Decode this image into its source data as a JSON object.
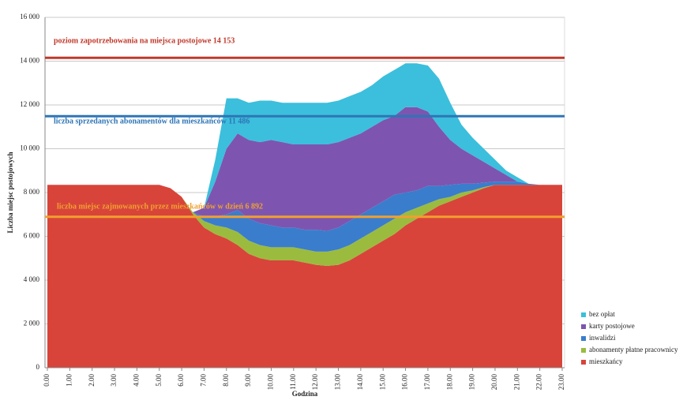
{
  "chart_data": {
    "type": "stacked_area",
    "y_label": "Liczba miejsc postojowych",
    "x_label": "Godzina",
    "x": [
      0,
      0.5,
      1,
      1.5,
      2,
      2.5,
      3,
      3.5,
      4,
      4.5,
      5,
      5.5,
      6,
      6.5,
      7,
      7.5,
      8,
      8.5,
      9,
      9.5,
      10,
      10.5,
      11,
      11.5,
      12,
      12.5,
      13,
      13.5,
      14,
      14.5,
      15,
      15.5,
      16,
      16.5,
      17,
      17.5,
      18,
      18.5,
      19,
      19.5,
      20,
      20.5,
      21,
      21.5,
      22,
      22.5,
      23
    ],
    "xlim": [
      0,
      23
    ],
    "xticks": [
      {
        "value": 0,
        "label": "0.00"
      },
      {
        "value": 1,
        "label": "1.00"
      },
      {
        "value": 2,
        "label": "2.00"
      },
      {
        "value": 3,
        "label": "3.00"
      },
      {
        "value": 4,
        "label": "4.00"
      },
      {
        "value": 5,
        "label": "5.00"
      },
      {
        "value": 6,
        "label": "6.00"
      },
      {
        "value": 7,
        "label": "7.00"
      },
      {
        "value": 8,
        "label": "8.00"
      },
      {
        "value": 9,
        "label": "9.00"
      },
      {
        "value": 10,
        "label": "10.00"
      },
      {
        "value": 11,
        "label": "11.00"
      },
      {
        "value": 12,
        "label": "12.00"
      },
      {
        "value": 13,
        "label": "13.00"
      },
      {
        "value": 14,
        "label": "14.00"
      },
      {
        "value": 15,
        "label": "15.00"
      },
      {
        "value": 16,
        "label": "16.00"
      },
      {
        "value": 17,
        "label": "17.00"
      },
      {
        "value": 18,
        "label": "18.00"
      },
      {
        "value": 19,
        "label": "19.00"
      },
      {
        "value": 20,
        "label": "20.00"
      },
      {
        "value": 21,
        "label": "21.00"
      },
      {
        "value": 22,
        "label": "22.00"
      },
      {
        "value": 23,
        "label": "23.00"
      }
    ],
    "ylim": [
      0,
      16000
    ],
    "yticks": [
      0,
      {
        "value": 2000,
        "label": "2 000"
      },
      {
        "value": 4000,
        "label": "4 000"
      },
      {
        "value": 6000,
        "label": "6 000"
      },
      {
        "value": 8000,
        "label": "8 000"
      },
      {
        "value": 10000,
        "label": "10 000"
      },
      {
        "value": 12000,
        "label": "12 000"
      },
      {
        "value": 14000,
        "label": "14 000"
      },
      {
        "value": 16000,
        "label": "16 000"
      }
    ],
    "grid": true,
    "series": [
      {
        "name": "mieszkańcy",
        "color": "#d8443a",
        "values": [
          8350,
          8350,
          8350,
          8350,
          8350,
          8350,
          8350,
          8350,
          8350,
          8350,
          8350,
          8200,
          7800,
          7000,
          6400,
          6100,
          5900,
          5600,
          5200,
          5000,
          4900,
          4900,
          4900,
          4800,
          4700,
          4650,
          4700,
          4900,
          5200,
          5500,
          5800,
          6100,
          6500,
          6800,
          7100,
          7400,
          7600,
          7800,
          8000,
          8200,
          8350,
          8350,
          8350,
          8350,
          8350,
          8350,
          8350
        ]
      },
      {
        "name": "abonamenty płatne pracownicy",
        "color": "#9bbb3f",
        "values": [
          0,
          0,
          0,
          0,
          0,
          0,
          0,
          0,
          0,
          0,
          0,
          0,
          0,
          100,
          300,
          400,
          500,
          600,
          600,
          600,
          600,
          600,
          600,
          600,
          600,
          650,
          700,
          700,
          700,
          700,
          700,
          700,
          600,
          500,
          400,
          300,
          200,
          200,
          100,
          50,
          0,
          0,
          0,
          0,
          0,
          0,
          0
        ]
      },
      {
        "name": "inwalidzi",
        "color": "#3a7dcc",
        "values": [
          0,
          0,
          0,
          0,
          0,
          0,
          0,
          0,
          0,
          0,
          0,
          0,
          0,
          0,
          200,
          400,
          600,
          1000,
          1000,
          1000,
          1000,
          900,
          900,
          900,
          1000,
          950,
          1000,
          1100,
          1100,
          1100,
          1100,
          1100,
          900,
          800,
          800,
          600,
          550,
          400,
          300,
          200,
          150,
          150,
          150,
          50,
          0,
          0,
          0
        ]
      },
      {
        "name": "karty postojowe",
        "color": "#7d55b0",
        "values": [
          0,
          0,
          0,
          0,
          0,
          0,
          0,
          0,
          0,
          0,
          0,
          0,
          0,
          0,
          400,
          1600,
          3000,
          3500,
          3600,
          3700,
          3900,
          3900,
          3800,
          3900,
          3900,
          3950,
          3900,
          3800,
          3700,
          3700,
          3700,
          3600,
          3900,
          3800,
          3400,
          2700,
          2050,
          1600,
          1300,
          950,
          600,
          300,
          0,
          0,
          0,
          0,
          0
        ]
      },
      {
        "name": "bez opłat",
        "color": "#3bbfdc",
        "values": [
          0,
          0,
          0,
          0,
          0,
          0,
          0,
          0,
          0,
          0,
          0,
          0,
          0,
          0,
          0,
          1000,
          2300,
          1600,
          1700,
          1900,
          1800,
          1800,
          1900,
          1900,
          1900,
          1900,
          1900,
          1900,
          1900,
          1900,
          2000,
          2100,
          2000,
          2000,
          2100,
          2200,
          1700,
          1100,
          800,
          600,
          400,
          200,
          200,
          0,
          0,
          0,
          0
        ]
      }
    ],
    "reference_lines": [
      {
        "label": "poziom zapotrzebowania na miejsca postojowe 14 153",
        "value": 14153,
        "color": "#c0392b"
      },
      {
        "label": "liczba sprzedanych abonamentów dla mieszkańców 11 486",
        "value": 11486,
        "color": "#2e75b6"
      },
      {
        "label": "liczba miejsc zajmowanych przez mieszkańców  w dzień  6 892",
        "value": 6892,
        "color": "#f0a030"
      }
    ]
  }
}
